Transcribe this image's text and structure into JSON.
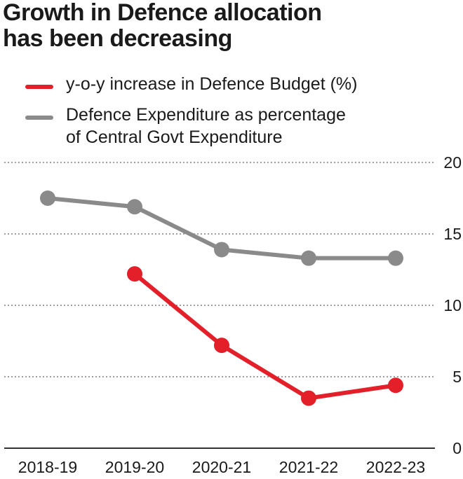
{
  "title_line1": "Growth in Defence allocation",
  "title_line2": "has been decreasing",
  "colors": {
    "red": "#e3202a",
    "gray": "#8a8a8a",
    "grid": "#666666",
    "text": "#1a1a1a"
  },
  "chart_data": {
    "type": "line",
    "categories": [
      "2018-19",
      "2019-20",
      "2020-21",
      "2021-22",
      "2022-23"
    ],
    "series": [
      {
        "name": "y-o-y increase in Defence Budget (%)",
        "color": "#e3202a",
        "values": [
          null,
          12.2,
          7.2,
          3.5,
          4.4
        ]
      },
      {
        "name_line1": "Defence Expenditure as percentage",
        "name_line2": "of Central Govt Expenditure",
        "color": "#8a8a8a",
        "values": [
          17.5,
          16.9,
          13.9,
          13.3,
          13.3
        ]
      }
    ],
    "ylim": [
      0,
      20
    ],
    "yticks": [
      "0",
      "5",
      "10",
      "15",
      "20"
    ],
    "grid": true,
    "legend_position": "top-left"
  }
}
